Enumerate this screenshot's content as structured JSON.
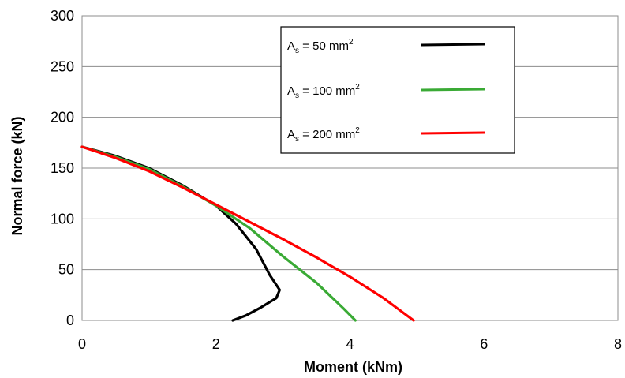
{
  "chart_data": {
    "type": "line",
    "xlabel": "Moment (kNm)",
    "ylabel": "Normal force (kN)",
    "xlim": [
      0,
      8
    ],
    "ylim": [
      0,
      300
    ],
    "x_ticks": [
      "0",
      "2",
      "4",
      "6",
      "8"
    ],
    "y_ticks": [
      "0",
      "50",
      "100",
      "150",
      "200",
      "250",
      "300"
    ],
    "grid": "horizontal",
    "legend_position": "top-right",
    "series": [
      {
        "name": "As = 50 mm2",
        "label_parts": {
          "base": "A",
          "sub": "s",
          "mid": " = 50 mm",
          "sup": "2"
        },
        "color": "#000000",
        "points": [
          [
            0,
            171
          ],
          [
            0.5,
            162
          ],
          [
            1.0,
            150
          ],
          [
            1.5,
            133
          ],
          [
            2.0,
            113
          ],
          [
            2.3,
            95
          ],
          [
            2.6,
            70
          ],
          [
            2.8,
            45
          ],
          [
            2.95,
            30
          ],
          [
            2.9,
            22
          ],
          [
            2.65,
            12
          ],
          [
            2.45,
            5
          ],
          [
            2.25,
            0
          ]
        ]
      },
      {
        "name": "As = 100 mm2",
        "label_parts": {
          "base": "A",
          "sub": "s",
          "mid": " = 100 mm",
          "sup": "2"
        },
        "color": "#3aaa35",
        "points": [
          [
            0,
            171
          ],
          [
            0.5,
            161
          ],
          [
            1.0,
            149
          ],
          [
            1.5,
            132
          ],
          [
            2.0,
            113
          ],
          [
            2.5,
            91
          ],
          [
            3.0,
            63
          ],
          [
            3.5,
            37
          ],
          [
            3.9,
            12
          ],
          [
            4.08,
            0
          ]
        ]
      },
      {
        "name": "As = 200 mm2",
        "label_parts": {
          "base": "A",
          "sub": "s",
          "mid": " = 200 mm",
          "sup": "2"
        },
        "color": "#ff0000",
        "points": [
          [
            0,
            171
          ],
          [
            0.5,
            160
          ],
          [
            1.0,
            147
          ],
          [
            1.5,
            131
          ],
          [
            2.0,
            114
          ],
          [
            2.5,
            97
          ],
          [
            3.0,
            80
          ],
          [
            3.5,
            62
          ],
          [
            4.0,
            43
          ],
          [
            4.5,
            22
          ],
          [
            4.95,
            0
          ]
        ]
      }
    ]
  }
}
